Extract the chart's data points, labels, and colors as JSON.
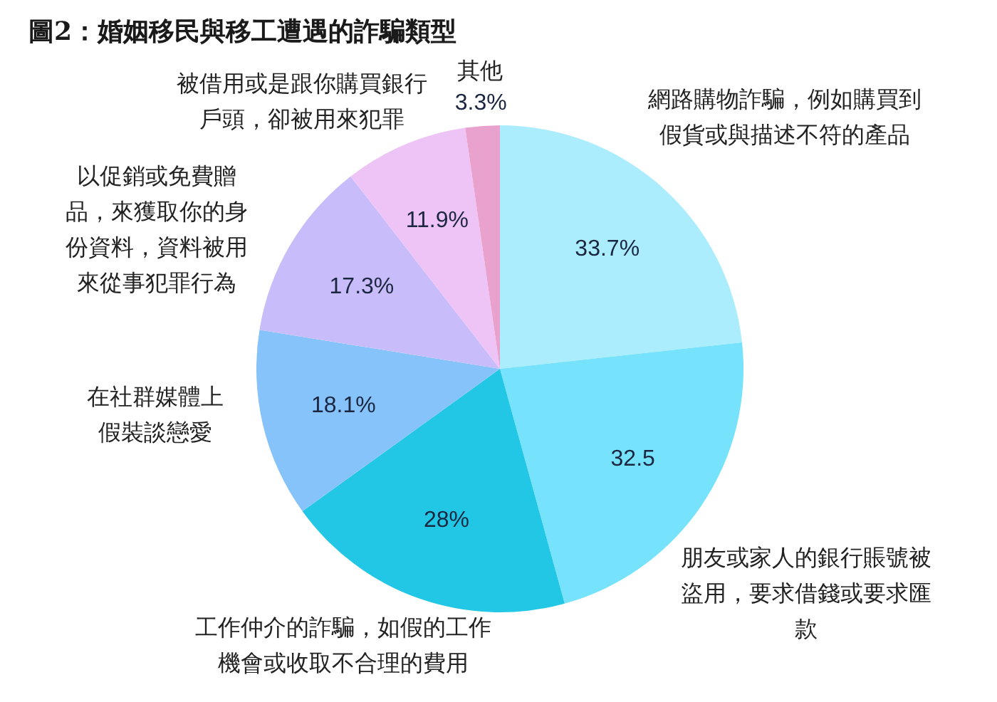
{
  "chart_data": {
    "type": "pie",
    "title": "圖2：婚姻移民與移工遭遇的詐騙類型",
    "categories": [
      "網路購物詐騙，例如購買到假貨或與描述不符的產品",
      "朋友或家人的銀行賬號被盜用，要求借錢或要求匯款",
      "工作仲介的詐騙，如假的工作機會或收取不合理的費用",
      "在社群媒體上假裝談戀愛",
      "以促銷或免費贈品，來獲取你的身份資料，資料被用來從事犯罪行為",
      "被借用或是跟你購買銀行戶頭，卻被用來犯罪",
      "其他"
    ],
    "values": [
      33.7,
      32.5,
      28,
      18.1,
      17.3,
      11.9,
      3.3
    ],
    "value_labels": [
      "33.7%",
      "32.5",
      "28%",
      "18.1%",
      "17.3%",
      "11.9%",
      "3.3%"
    ],
    "colors": [
      "#abedfd",
      "#76e2fb",
      "#22c7e5",
      "#87c3fb",
      "#c9bcfa",
      "#eec3f5",
      "#e9a2ce"
    ]
  }
}
